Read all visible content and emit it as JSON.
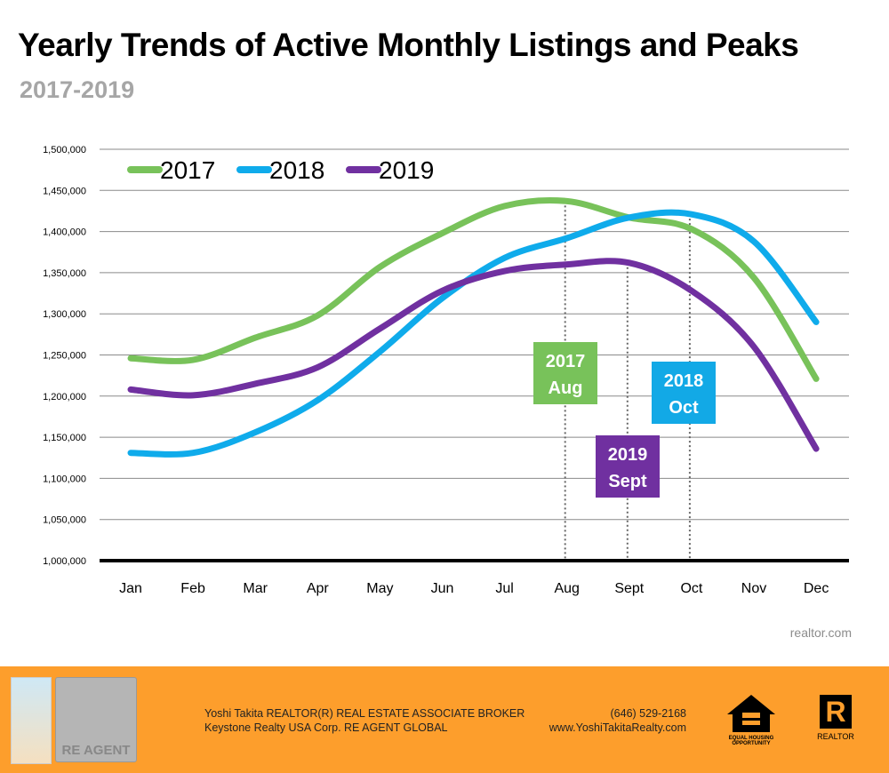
{
  "title": "Yearly Trends of Active Monthly Listings and Peaks",
  "subtitle": "2017-2019",
  "source": "realtor.com",
  "chart_data": {
    "type": "line",
    "categories": [
      "Jan",
      "Feb",
      "Mar",
      "Apr",
      "May",
      "Jun",
      "Jul",
      "Aug",
      "Sept",
      "Oct",
      "Nov",
      "Dec"
    ],
    "ylim": [
      1000000,
      1500000
    ],
    "yticks": [
      "1,000,000",
      "1,050,000",
      "1,100,000",
      "1,150,000",
      "1,200,000",
      "1,250,000",
      "1,300,000",
      "1,350,000",
      "1,400,000",
      "1,450,000",
      "1,500,000"
    ],
    "grid": true,
    "legend": "top-left",
    "series": [
      {
        "name": "2017",
        "color": "#78c25a",
        "values": [
          1246000,
          1244000,
          1271000,
          1298000,
          1357000,
          1398000,
          1431000,
          1437000,
          1417000,
          1403000,
          1344000,
          1221000
        ]
      },
      {
        "name": "2018",
        "color": "#0fabeb",
        "values": [
          1131000,
          1131000,
          1156000,
          1195000,
          1254000,
          1319000,
          1368000,
          1392000,
          1417000,
          1421000,
          1388000,
          1290000
        ]
      },
      {
        "name": "2019",
        "color": "#7030a0",
        "values": [
          1208000,
          1201000,
          1215000,
          1235000,
          1282000,
          1328000,
          1352000,
          1360000,
          1362000,
          1328000,
          1260000,
          1136000
        ]
      }
    ],
    "annotations": [
      {
        "series": 0,
        "month": "Aug",
        "line1": "2017",
        "line2": "Aug",
        "color": "#78c25a"
      },
      {
        "series": 1,
        "month": "Oct",
        "line1": "2018",
        "line2": "Oct",
        "color": "#12a9e6"
      },
      {
        "series": 2,
        "month": "Sept",
        "line1": "2019",
        "line2": "Sept",
        "color": "#7030a0"
      }
    ]
  },
  "footer": {
    "agent_line": "Yoshi Takita REALTOR(R) REAL ESTATE ASSOCIATE BROKER",
    "company_line": "Keystone Realty USA Corp.  RE AGENT GLOBAL",
    "phone": "(646) 529-2168",
    "website": "www.YoshiTakitaRealty.com",
    "reagent_logo": "RE AGENT",
    "equal_housing": "EQUAL HOUSING OPPORTUNITY",
    "realtor_logo": "REALTOR",
    "realtor_letter": "R"
  }
}
